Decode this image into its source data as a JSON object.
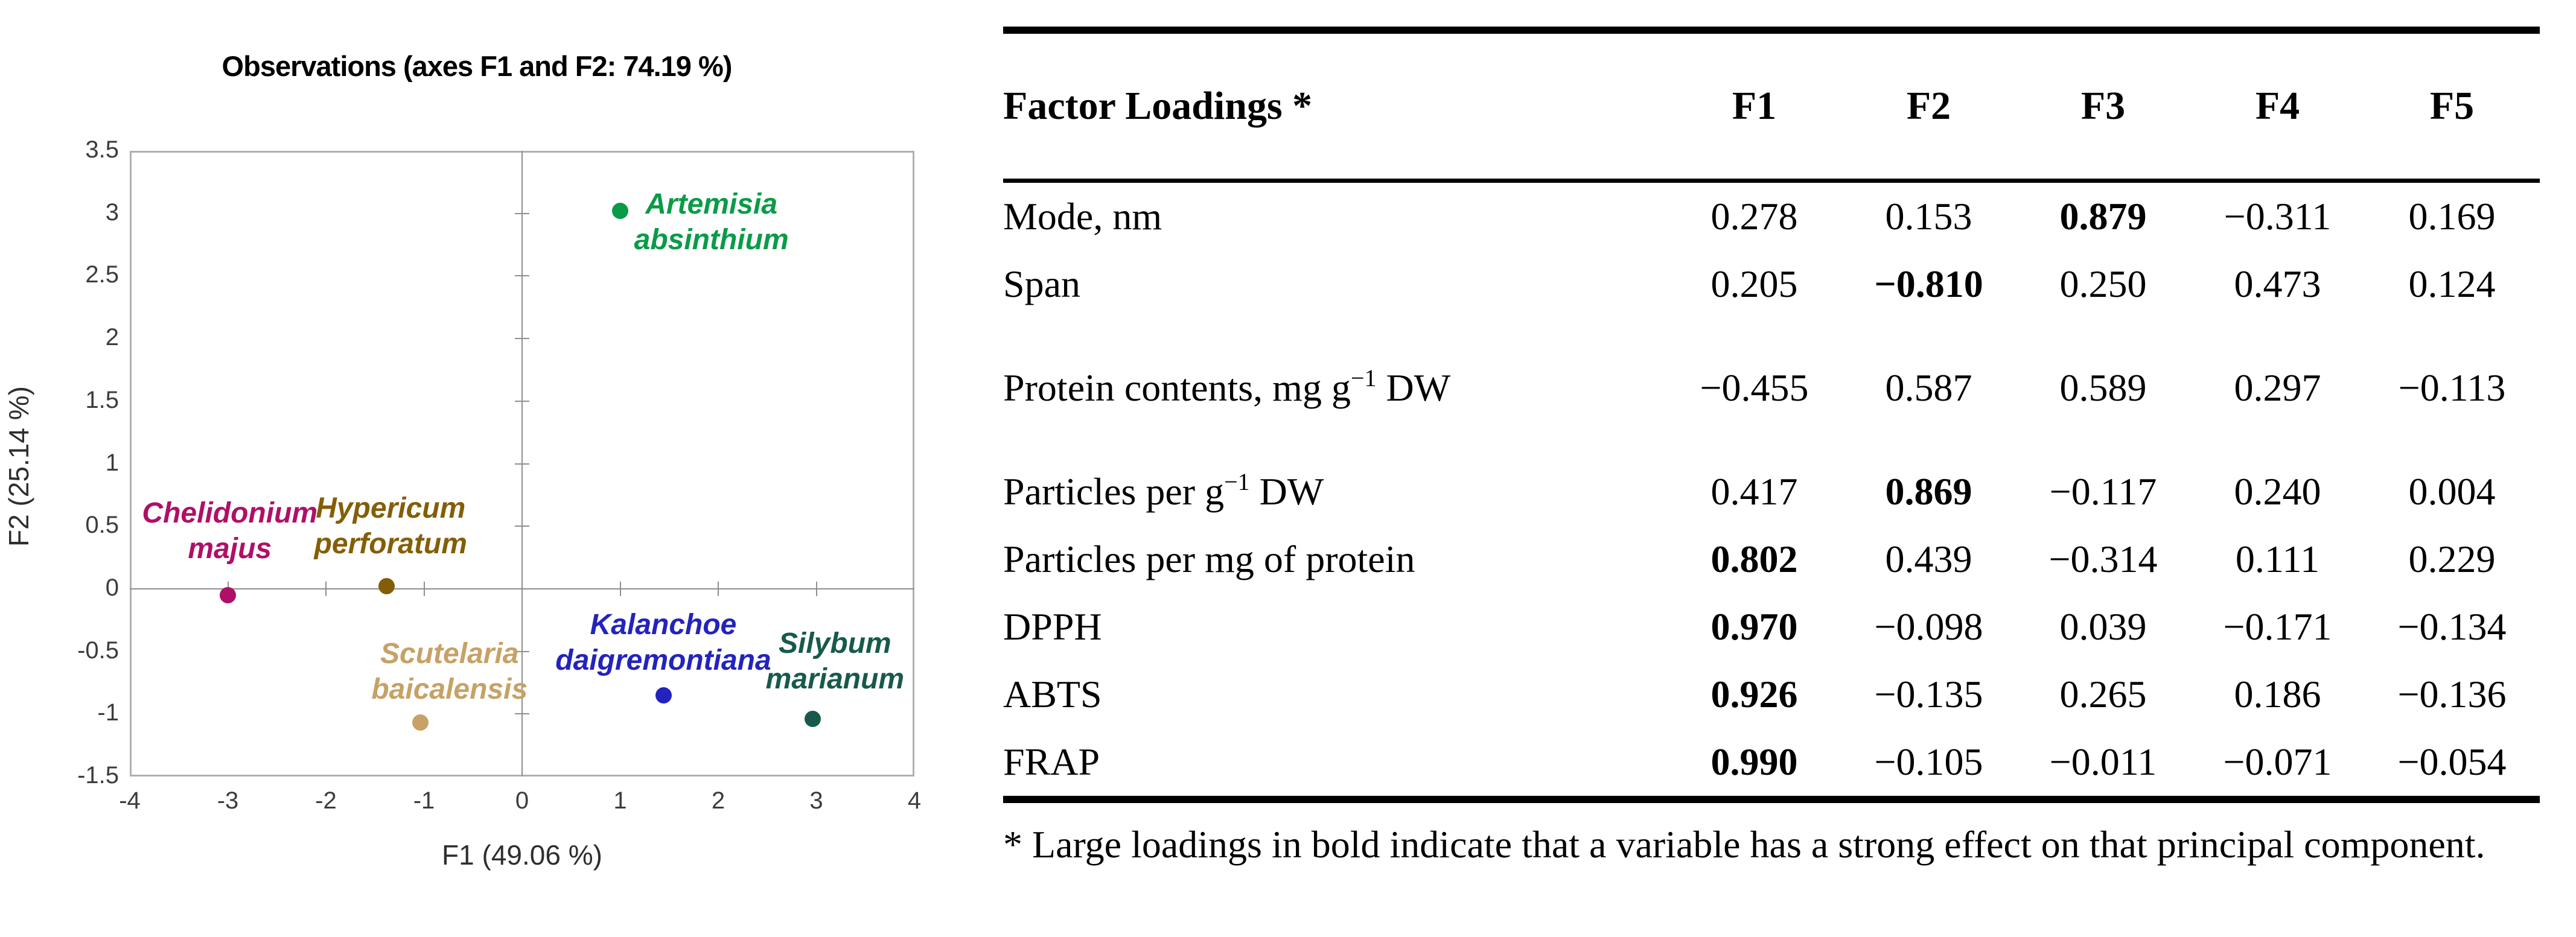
{
  "chart_data": {
    "type": "scatter",
    "title": "Observations (axes F1 and F2: 74.19 %)",
    "xlabel": "F1 (49.06 %)",
    "ylabel": "F2 (25.14 %)",
    "xlim": [
      -4,
      4
    ],
    "ylim": [
      -1.5,
      3.5
    ],
    "xticks": [
      "-4",
      "-3",
      "-2",
      "-1",
      "0",
      "1",
      "2",
      "3",
      "4"
    ],
    "yticks": [
      "3.5",
      "3",
      "2.5",
      "2",
      "1.5",
      "1",
      "0.5",
      "0",
      "-0.5",
      "-1",
      "-1.5"
    ],
    "grid": false,
    "axis_color": "#b0b0b0",
    "points": [
      {
        "name": "Artemisia absinthium",
        "x": 1.0,
        "y": 3.02,
        "color": "#0a9b47",
        "label_lines": [
          "Artemisia",
          "absinthium"
        ],
        "label_x": 1.93,
        "label_y": 2.93
      },
      {
        "name": "Chelidonium majus",
        "x": -3.0,
        "y": -0.05,
        "color": "#b00f68",
        "label_lines": [
          "Chelidonium",
          "majus"
        ],
        "label_x": -2.98,
        "label_y": 0.46
      },
      {
        "name": "Hypericum perforatum",
        "x": -1.38,
        "y": 0.02,
        "color": "#845e07",
        "label_lines": [
          "Hypericum",
          "perforatum"
        ],
        "label_x": -1.34,
        "label_y": 0.5
      },
      {
        "name": "Scutelaria baicalensis",
        "x": -1.04,
        "y": -1.07,
        "color": "#c7a166",
        "label_lines": [
          "Scutelaria",
          "baicalensis"
        ],
        "label_x": -0.74,
        "label_y": -0.66
      },
      {
        "name": "Kalanchoe daigremontiana",
        "x": 1.44,
        "y": -0.85,
        "color": "#2323bd",
        "label_lines": [
          "Kalanchoe",
          "daigremontiana"
        ],
        "label_x": 1.44,
        "label_y": -0.43
      },
      {
        "name": "Silybum marianum",
        "x": 2.96,
        "y": -1.04,
        "color": "#175a4b",
        "label_lines": [
          "Silybum",
          "marianum"
        ],
        "label_x": 3.19,
        "label_y": -0.58
      }
    ]
  },
  "table": {
    "title": "Factor Loadings *",
    "columns": [
      "F1",
      "F2",
      "F3",
      "F4",
      "F5"
    ],
    "rows": [
      {
        "label_parts": [
          {
            "t": "Mode, nm"
          }
        ],
        "values": [
          "0.278",
          "0.153",
          "0.879",
          "−0.311",
          "0.169"
        ],
        "bold_index": 2,
        "gap_before": false
      },
      {
        "label_parts": [
          {
            "t": "Span"
          }
        ],
        "values": [
          "0.205",
          "−0.810",
          "0.250",
          "0.473",
          "0.124"
        ],
        "bold_index": 1,
        "gap_before": false
      },
      {
        "label_parts": [
          {
            "t": "Protein contents, mg g"
          },
          {
            "sup": "−1"
          },
          {
            "t": " DW"
          }
        ],
        "values": [
          "−0.455",
          "0.587",
          "0.589",
          "0.297",
          "−0.113"
        ],
        "bold_index": -1,
        "gap_before": true
      },
      {
        "label_parts": [
          {
            "t": "Particles per g"
          },
          {
            "sup": "−1"
          },
          {
            "t": " DW"
          }
        ],
        "values": [
          "0.417",
          "0.869",
          "−0.117",
          "0.240",
          "0.004"
        ],
        "bold_index": 1,
        "gap_before": true
      },
      {
        "label_parts": [
          {
            "t": "Particles per mg of protein"
          }
        ],
        "values": [
          "0.802",
          "0.439",
          "−0.314",
          "0.111",
          "0.229"
        ],
        "bold_index": 0,
        "gap_before": false
      },
      {
        "label_parts": [
          {
            "t": "DPPH"
          }
        ],
        "values": [
          "0.970",
          "−0.098",
          "0.039",
          "−0.171",
          "−0.134"
        ],
        "bold_index": 0,
        "gap_before": false
      },
      {
        "label_parts": [
          {
            "t": "ABTS"
          }
        ],
        "values": [
          "0.926",
          "−0.135",
          "0.265",
          "0.186",
          "−0.136"
        ],
        "bold_index": 0,
        "gap_before": false
      },
      {
        "label_parts": [
          {
            "t": "FRAP"
          }
        ],
        "values": [
          "0.990",
          "−0.105",
          "−0.011",
          "−0.071",
          "−0.054"
        ],
        "bold_index": 0,
        "gap_before": false
      }
    ],
    "footnote": "* Large loadings in bold indicate that a variable has a strong effect on that principal component."
  }
}
